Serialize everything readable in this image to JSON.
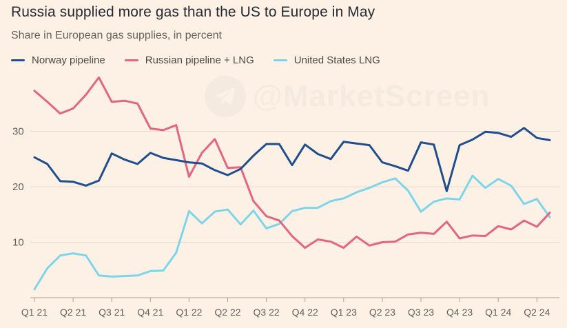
{
  "title": "Russia supplied more gas than the US to Europe in May",
  "subtitle": "Share in European gas supplies, in percent",
  "watermark": "@MarketScreen",
  "chart_data": {
    "type": "line",
    "x_labels": [
      "Q1 21",
      "Q2 21",
      "Q3 21",
      "Q4 21",
      "Q1 22",
      "Q2 22",
      "Q3 22",
      "Q4 22",
      "Q1 23",
      "Q2 23",
      "Q3 23",
      "Q4 23",
      "Q1 24",
      "Q2 24"
    ],
    "months": [
      "2021-01",
      "2021-02",
      "2021-03",
      "2021-04",
      "2021-05",
      "2021-06",
      "2021-07",
      "2021-08",
      "2021-09",
      "2021-10",
      "2021-11",
      "2021-12",
      "2022-01",
      "2022-02",
      "2022-03",
      "2022-04",
      "2022-05",
      "2022-06",
      "2022-07",
      "2022-08",
      "2022-09",
      "2022-10",
      "2022-11",
      "2022-12",
      "2023-01",
      "2023-02",
      "2023-03",
      "2023-04",
      "2023-05",
      "2023-06",
      "2023-07",
      "2023-08",
      "2023-09",
      "2023-10",
      "2023-11",
      "2023-12",
      "2024-01",
      "2024-02",
      "2024-03",
      "2024-04",
      "2024-05"
    ],
    "y_ticks": [
      10,
      20,
      30
    ],
    "ylim": [
      0,
      40
    ],
    "grid": true,
    "legend_position": "top-left",
    "series": [
      {
        "name": "Norway pipeline",
        "color": "#1f4e8c",
        "values": [
          25.3,
          24.1,
          21.0,
          20.9,
          20.2,
          21.1,
          26.0,
          24.9,
          24.1,
          26.1,
          25.2,
          24.8,
          24.4,
          24.2,
          23.0,
          22.1,
          23.2,
          25.6,
          27.7,
          27.7,
          23.9,
          27.6,
          25.9,
          25.0,
          28.1,
          27.8,
          27.5,
          24.4,
          23.7,
          22.9,
          28.0,
          27.6,
          19.2,
          27.5,
          28.5,
          29.9,
          29.7,
          29.0,
          30.6,
          28.8,
          28.4
        ]
      },
      {
        "name": "Russian pipeline + LNG",
        "color": "#e5647e",
        "values": [
          37.3,
          35.3,
          33.2,
          34.1,
          36.6,
          39.7,
          35.3,
          35.5,
          35.0,
          30.5,
          30.2,
          31.1,
          21.8,
          26.1,
          28.6,
          23.4,
          23.5,
          17.4,
          14.7,
          13.9,
          11.1,
          9.0,
          10.5,
          10.1,
          9.0,
          11.0,
          9.4,
          10.0,
          10.1,
          11.4,
          11.7,
          11.5,
          13.7,
          10.7,
          11.2,
          11.1,
          12.9,
          12.3,
          13.9,
          12.8,
          15.3
        ]
      },
      {
        "name": "United States LNG",
        "color": "#7cd5e8",
        "values": [
          1.5,
          5.3,
          7.6,
          8.0,
          7.6,
          4.0,
          3.8,
          3.9,
          4.0,
          4.8,
          4.9,
          8.1,
          15.6,
          13.4,
          15.5,
          15.9,
          13.2,
          15.7,
          12.5,
          13.3,
          15.6,
          16.2,
          16.2,
          17.4,
          17.9,
          19.0,
          19.8,
          20.8,
          21.5,
          19.3,
          15.5,
          17.3,
          17.9,
          17.7,
          22.0,
          19.8,
          21.4,
          20.2,
          16.9,
          17.8,
          14.5
        ]
      }
    ]
  }
}
